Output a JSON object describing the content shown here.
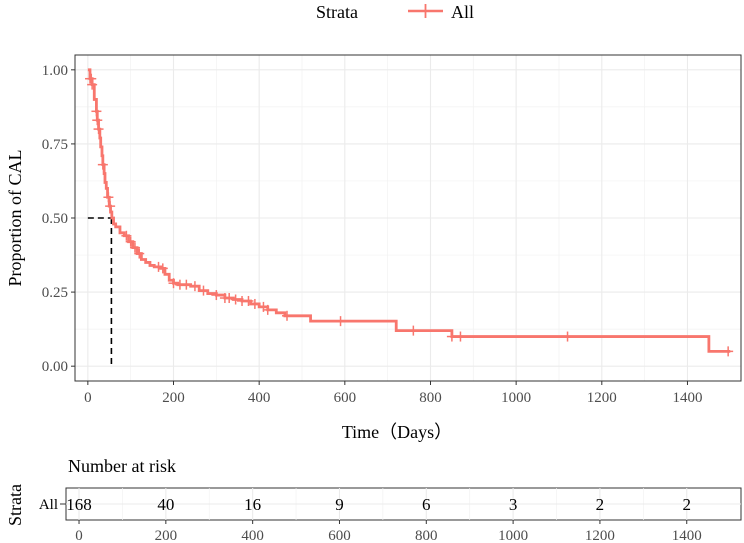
{
  "chart_data": {
    "type": "survival",
    "legend": {
      "title": "Strata",
      "entries": [
        "All"
      ],
      "position": "top"
    },
    "xlabel": "Time（Days）",
    "ylabel": "Proportion of CAL",
    "xlim": [
      -30,
      1525
    ],
    "ylim": [
      -0.05,
      1.05
    ],
    "x_ticks": [
      0,
      200,
      400,
      600,
      800,
      1000,
      1200,
      1400
    ],
    "y_ticks": [
      0,
      0.25,
      0.5,
      0.75,
      1.0
    ],
    "y_tick_labels": [
      "0.00",
      "0.25",
      "0.50",
      "0.75",
      "1.00"
    ],
    "grid": true,
    "color": "#F8766D",
    "median": {
      "time": 55,
      "survival": 0.5
    },
    "series": [
      {
        "name": "All",
        "steps": [
          [
            0,
            1.0
          ],
          [
            5,
            0.97
          ],
          [
            10,
            0.95
          ],
          [
            15,
            0.9
          ],
          [
            20,
            0.86
          ],
          [
            22,
            0.83
          ],
          [
            25,
            0.8
          ],
          [
            28,
            0.77
          ],
          [
            30,
            0.74
          ],
          [
            33,
            0.71
          ],
          [
            35,
            0.68
          ],
          [
            38,
            0.65
          ],
          [
            40,
            0.62
          ],
          [
            43,
            0.6
          ],
          [
            46,
            0.57
          ],
          [
            50,
            0.54
          ],
          [
            53,
            0.52
          ],
          [
            56,
            0.5
          ],
          [
            60,
            0.48
          ],
          [
            65,
            0.47
          ],
          [
            75,
            0.45
          ],
          [
            85,
            0.44
          ],
          [
            95,
            0.42
          ],
          [
            105,
            0.4
          ],
          [
            115,
            0.38
          ],
          [
            125,
            0.36
          ],
          [
            135,
            0.35
          ],
          [
            145,
            0.34
          ],
          [
            155,
            0.335
          ],
          [
            170,
            0.33
          ],
          [
            180,
            0.31
          ],
          [
            190,
            0.29
          ],
          [
            200,
            0.28
          ],
          [
            210,
            0.275
          ],
          [
            240,
            0.27
          ],
          [
            260,
            0.255
          ],
          [
            280,
            0.245
          ],
          [
            300,
            0.24
          ],
          [
            320,
            0.23
          ],
          [
            340,
            0.225
          ],
          [
            360,
            0.22
          ],
          [
            380,
            0.21
          ],
          [
            400,
            0.2
          ],
          [
            420,
            0.19
          ],
          [
            440,
            0.18
          ],
          [
            460,
            0.17
          ],
          [
            520,
            0.152
          ],
          [
            720,
            0.12
          ],
          [
            850,
            0.1
          ],
          [
            1450,
            0.05
          ],
          [
            1500,
            0.05
          ]
        ],
        "censor_times": [
          5,
          8,
          10,
          20,
          22,
          25,
          35,
          48,
          52,
          90,
          100,
          110,
          120,
          165,
          175,
          200,
          215,
          230,
          250,
          270,
          300,
          320,
          330,
          345,
          360,
          375,
          390,
          410,
          420,
          465,
          590,
          760,
          850,
          870,
          1120,
          1495
        ]
      }
    ],
    "risk_table": {
      "title": "Number at risk",
      "strata_axis_label": "Strata",
      "row_label": "All",
      "times": [
        0,
        200,
        400,
        600,
        800,
        1000,
        1200,
        1400
      ],
      "counts": [
        168,
        40,
        16,
        9,
        6,
        3,
        2,
        2
      ]
    }
  }
}
